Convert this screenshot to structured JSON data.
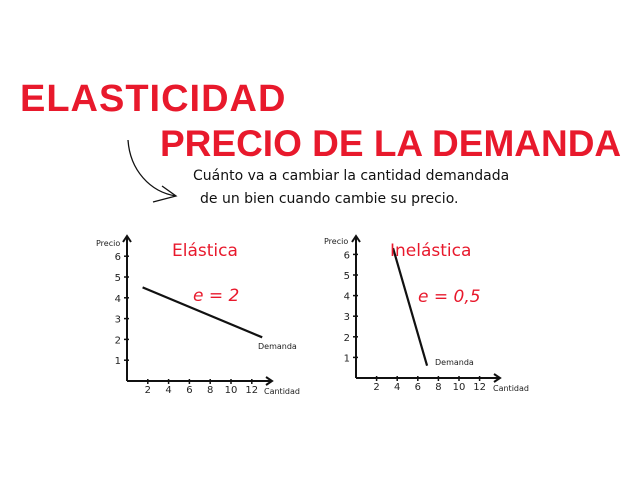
{
  "header": {
    "title_line1": "ELASTICIDAD",
    "title_line2": "PRECIO DE LA DEMANDA",
    "subtitle_line1": "Cuánto va a cambiar la cantidad demandada",
    "subtitle_line2": "de un bien cuando cambie su precio."
  },
  "colors": {
    "accent": "#e8192c",
    "ink": "#111111"
  },
  "chart_data": [
    {
      "type": "line",
      "title": "Elástica",
      "annotation": "e = 2",
      "series_label": "Demanda",
      "xlabel": "Cantidad",
      "ylabel": "Precio",
      "xticks": [
        2,
        4,
        6,
        8,
        10,
        12
      ],
      "yticks": [
        1,
        2,
        3,
        4,
        5,
        6
      ],
      "xlim": [
        0,
        14
      ],
      "ylim": [
        0,
        7
      ],
      "x": [
        1.5,
        13
      ],
      "y": [
        4.5,
        2.1
      ]
    },
    {
      "type": "line",
      "title": "Inelástica",
      "annotation": "e = 0,5",
      "series_label": "Demanda",
      "xlabel": "Cantidad",
      "ylabel": "Precio",
      "xticks": [
        2,
        4,
        6,
        8,
        10,
        12
      ],
      "yticks": [
        1,
        2,
        3,
        4,
        5,
        6
      ],
      "xlim": [
        0,
        14
      ],
      "ylim": [
        0,
        7
      ],
      "x": [
        3.6,
        6.9
      ],
      "y": [
        6.3,
        0.6
      ]
    }
  ]
}
